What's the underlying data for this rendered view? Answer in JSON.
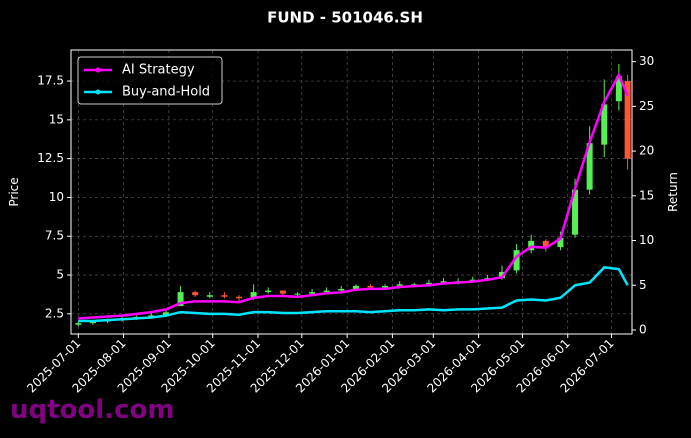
{
  "chart_data": {
    "type": "candlestick",
    "title": "FUND - 501046.SH",
    "ylabel": "Price",
    "y2label": "Return",
    "watermark": "uqtool.com",
    "x": [
      "2025-07-01",
      "2025-07-11",
      "2025-07-21",
      "2025-07-31",
      "2025-08-10",
      "2025-08-20",
      "2025-08-30",
      "2025-09-09",
      "2025-09-19",
      "2025-09-29",
      "2025-10-09",
      "2025-10-19",
      "2025-10-29",
      "2025-11-08",
      "2025-11-18",
      "2025-11-28",
      "2025-12-08",
      "2025-12-18",
      "2025-12-28",
      "2026-01-07",
      "2026-01-17",
      "2026-01-27",
      "2026-02-06",
      "2026-02-16",
      "2026-02-26",
      "2026-03-08",
      "2026-03-18",
      "2026-03-28",
      "2026-04-07",
      "2026-04-17",
      "2026-04-27",
      "2026-05-07",
      "2026-05-17",
      "2026-05-27",
      "2026-06-06",
      "2026-06-16",
      "2026-06-26",
      "2026-07-06",
      "2026-07-12"
    ],
    "open": [
      1.8,
      1.9,
      2.0,
      2.1,
      2.2,
      2.3,
      2.4,
      3.0,
      3.9,
      3.6,
      3.7,
      3.6,
      3.5,
      3.9,
      4.0,
      3.8,
      3.8,
      3.9,
      4.0,
      4.1,
      4.3,
      4.2,
      4.3,
      4.4,
      4.4,
      4.5,
      4.6,
      4.6,
      4.7,
      4.8,
      5.3,
      6.6,
      7.2,
      6.8,
      7.6,
      10.5,
      13.4,
      16.2,
      17.5
    ],
    "high": [
      2.0,
      2.1,
      2.2,
      2.3,
      2.4,
      2.6,
      2.8,
      4.3,
      4.0,
      3.9,
      3.9,
      3.7,
      4.4,
      4.2,
      4.0,
      3.9,
      4.1,
      4.2,
      4.3,
      4.4,
      4.4,
      4.4,
      4.6,
      4.5,
      4.7,
      4.8,
      4.8,
      4.9,
      5.0,
      5.6,
      7.0,
      7.6,
      7.3,
      7.8,
      11.2,
      14.6,
      17.6,
      18.6,
      17.9
    ],
    "low": [
      1.7,
      1.8,
      1.9,
      2.0,
      2.1,
      2.2,
      2.3,
      3.0,
      3.6,
      3.5,
      3.5,
      3.3,
      3.4,
      3.8,
      3.7,
      3.6,
      3.7,
      3.8,
      3.9,
      4.0,
      4.1,
      4.1,
      4.2,
      4.2,
      4.3,
      4.4,
      4.4,
      4.5,
      4.6,
      4.7,
      5.1,
      6.4,
      6.5,
      6.6,
      7.4,
      10.2,
      12.6,
      15.6,
      11.8
    ],
    "close": [
      1.9,
      2.0,
      2.1,
      2.2,
      2.3,
      2.4,
      2.6,
      3.9,
      3.7,
      3.7,
      3.6,
      3.5,
      3.9,
      4.0,
      3.8,
      3.8,
      3.9,
      4.0,
      4.1,
      4.3,
      4.2,
      4.3,
      4.4,
      4.4,
      4.5,
      4.6,
      4.6,
      4.7,
      4.8,
      5.2,
      6.6,
      7.2,
      6.8,
      7.4,
      10.5,
      13.5,
      16.0,
      17.8,
      12.5
    ],
    "up_color": "#55ee55",
    "down_color": "#ff5533",
    "series": [
      {
        "name": "AI Strategy",
        "color": "#ff00ff",
        "axis": "y2",
        "values": [
          1.3,
          1.4,
          1.5,
          1.6,
          1.8,
          2.0,
          2.3,
          3.0,
          3.2,
          3.2,
          3.2,
          3.1,
          3.6,
          3.8,
          3.8,
          3.7,
          3.9,
          4.1,
          4.2,
          4.5,
          4.6,
          4.6,
          4.8,
          4.9,
          5.0,
          5.2,
          5.3,
          5.4,
          5.6,
          5.9,
          8.2,
          9.3,
          9.2,
          10.2,
          15.8,
          21.0,
          25.5,
          28.5,
          26.2
        ]
      },
      {
        "name": "Buy-and-Hold",
        "color": "#00e5ff",
        "axis": "y2",
        "values": [
          1.0,
          1.0,
          1.1,
          1.2,
          1.3,
          1.4,
          1.6,
          2.0,
          1.9,
          1.8,
          1.8,
          1.7,
          2.0,
          2.0,
          1.9,
          1.9,
          2.0,
          2.1,
          2.1,
          2.1,
          2.0,
          2.1,
          2.2,
          2.2,
          2.3,
          2.2,
          2.3,
          2.3,
          2.4,
          2.5,
          3.3,
          3.4,
          3.3,
          3.6,
          5.0,
          5.3,
          7.0,
          6.8,
          5.0
        ]
      }
    ],
    "xlim": [
      "2025-06-26",
      "2026-07-15"
    ],
    "xticks": [
      "2025-07-01",
      "2025-08-01",
      "2025-09-01",
      "2025-10-01",
      "2025-11-01",
      "2025-12-01",
      "2026-01-01",
      "2026-02-01",
      "2026-03-01",
      "2026-04-01",
      "2026-05-01",
      "2026-06-01",
      "2026-07-01"
    ],
    "ylim": [
      1.2,
      19.5
    ],
    "yticks": [
      2.5,
      5.0,
      7.5,
      10.0,
      12.5,
      15.0,
      17.5
    ],
    "y2lim": [
      -0.45,
      31.3
    ],
    "y2ticks": [
      0,
      5,
      10,
      15,
      20,
      25,
      30
    ],
    "grid": true,
    "legend": "upper left"
  }
}
